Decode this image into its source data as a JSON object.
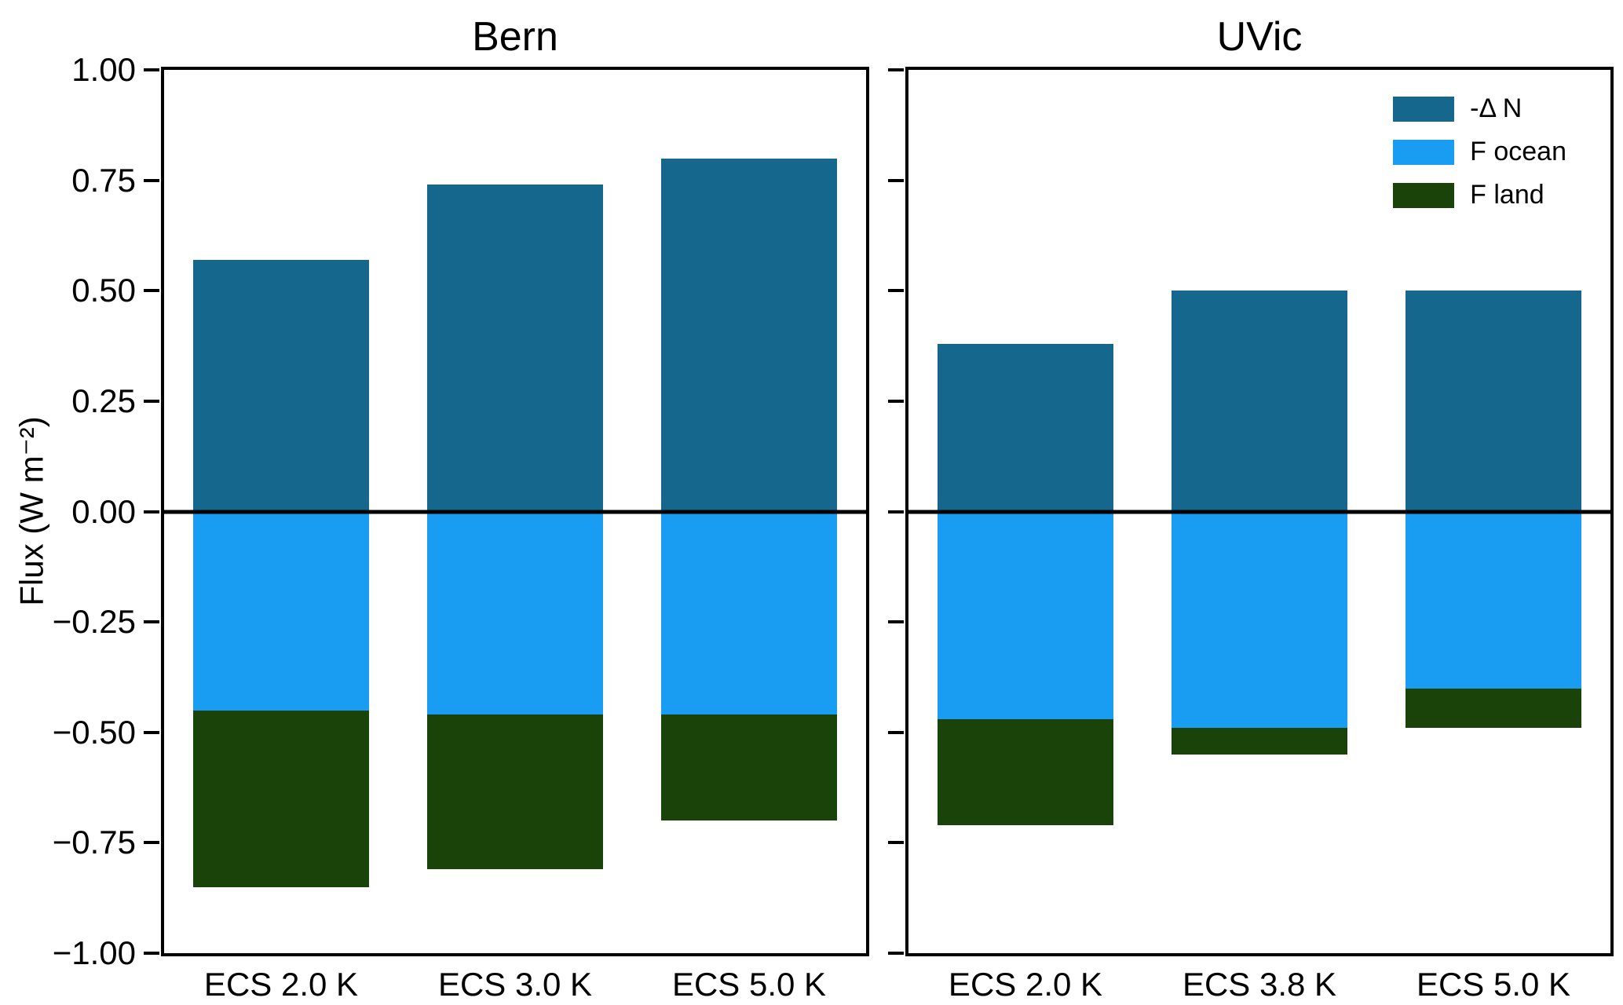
{
  "figure": {
    "background": "#ffffff",
    "ylabel": "Flux (W m⁻²)",
    "ytick_labels": [
      "1.00",
      "0.75",
      "0.50",
      "0.25",
      "0.00",
      "−0.25",
      "−0.50",
      "−0.75",
      "−1.00"
    ],
    "ytick_values": [
      1.0,
      0.75,
      0.5,
      0.25,
      0.0,
      -0.25,
      -0.5,
      -0.75,
      -1.0
    ]
  },
  "legend": {
    "entries": [
      {
        "label": "-Δ N",
        "color": "#15678e"
      },
      {
        "label": "F ocean",
        "color": "#189df2"
      },
      {
        "label": "F land",
        "color": "#1a4309"
      }
    ]
  },
  "chart_data": [
    {
      "type": "bar",
      "title": "Bern",
      "stacked": true,
      "categories": [
        "ECS 2.0 K",
        "ECS 3.0 K",
        "ECS 5.0 K"
      ],
      "ylabel": "Flux (W m⁻²)",
      "ylim": [
        -1.0,
        1.0
      ],
      "grid": false,
      "series": [
        {
          "name": "-Δ N",
          "color": "#15678e",
          "values": [
            0.57,
            0.74,
            0.8
          ]
        },
        {
          "name": "F ocean",
          "color": "#189df2",
          "values": [
            -0.45,
            -0.46,
            -0.46
          ]
        },
        {
          "name": "F land",
          "color": "#1a4309",
          "values": [
            -0.4,
            -0.35,
            -0.24
          ]
        }
      ]
    },
    {
      "type": "bar",
      "title": "UVic",
      "stacked": true,
      "categories": [
        "ECS 2.0 K",
        "ECS 3.8 K",
        "ECS 5.0 K"
      ],
      "ylabel": "Flux (W m⁻²)",
      "ylim": [
        -1.0,
        1.0
      ],
      "grid": false,
      "legend_position": "upper right",
      "series": [
        {
          "name": "-Δ N",
          "color": "#15678e",
          "values": [
            0.38,
            0.5,
            0.5
          ]
        },
        {
          "name": "F ocean",
          "color": "#189df2",
          "values": [
            -0.47,
            -0.49,
            -0.4
          ]
        },
        {
          "name": "F land",
          "color": "#1a4309",
          "values": [
            -0.24,
            -0.06,
            -0.09
          ]
        }
      ]
    }
  ]
}
